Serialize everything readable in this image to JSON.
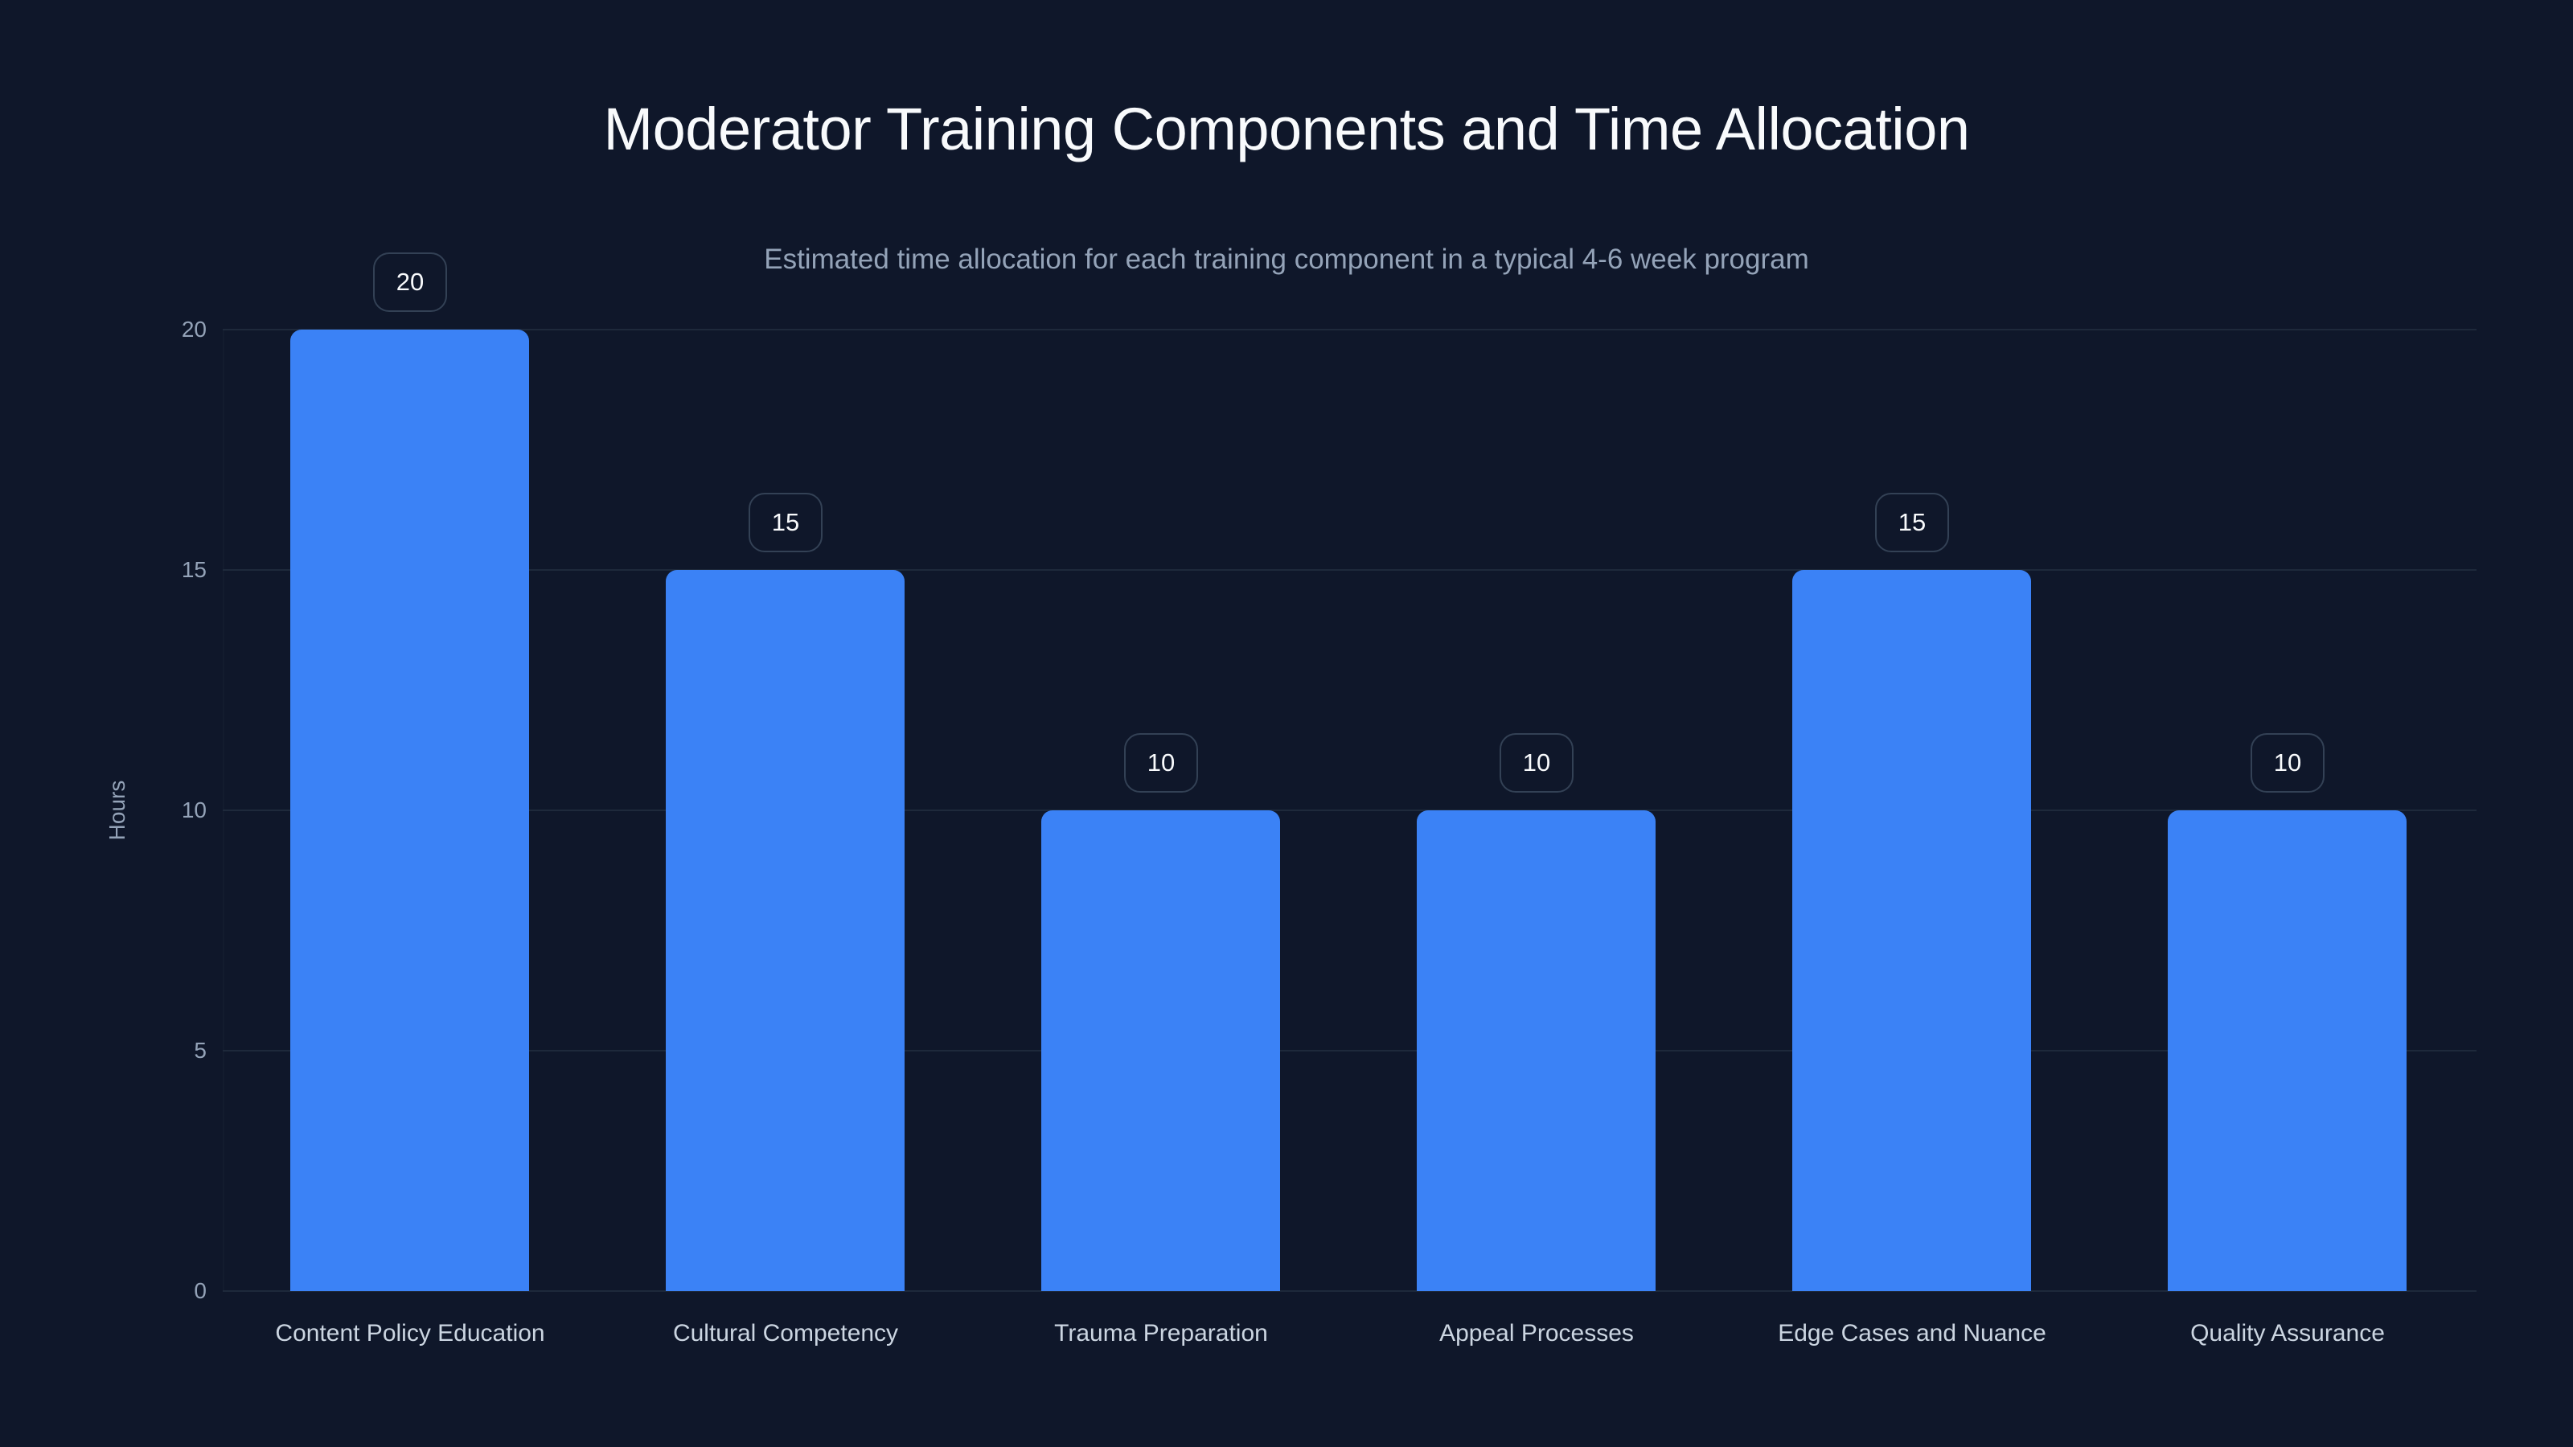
{
  "chart_data": {
    "type": "bar",
    "title": "Moderator Training Components and Time Allocation",
    "subtitle": "Estimated time allocation for each training component in a typical 4-6 week program",
    "xlabel": "",
    "ylabel": "Hours",
    "ylim": [
      0,
      20
    ],
    "yticks": [
      0,
      5,
      10,
      15,
      20
    ],
    "grid": true,
    "legend": null,
    "categories": [
      "Content Policy Education",
      "Cultural Competency",
      "Trauma Preparation",
      "Appeal Processes",
      "Edge Cases and Nuance",
      "Quality Assurance"
    ],
    "values": [
      20,
      15,
      10,
      10,
      15,
      10
    ],
    "data_labels": [
      "20",
      "15",
      "10",
      "10",
      "15",
      "10"
    ],
    "colors": {
      "bar": "#3b82f6",
      "background": "#0f172a",
      "grid": "#1e293b",
      "text": "#f8fafc",
      "muted": "#94a3b8"
    }
  },
  "yticks_labels": [
    "0",
    "5",
    "10",
    "15",
    "20"
  ]
}
